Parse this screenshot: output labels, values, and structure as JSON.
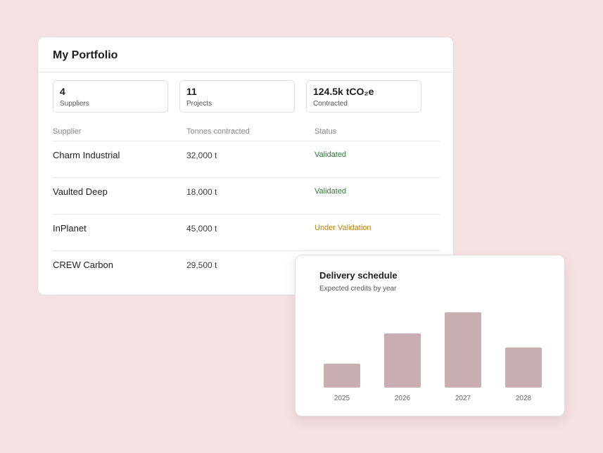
{
  "portfolio": {
    "title": "My Portfolio",
    "stats": [
      {
        "value": "4",
        "label": "Suppliers"
      },
      {
        "value": "11",
        "label": "Projects"
      },
      {
        "value": "124.5k tCO₂e",
        "label": "Contracted"
      }
    ],
    "columns": {
      "supplier": "Supplier",
      "tonnes": "Tonnes contracted",
      "status": "Status"
    },
    "rows": [
      {
        "supplier": "Charm Industrial",
        "tonnes": "32,000 t",
        "status": "Validated"
      },
      {
        "supplier": "Vaulted Deep",
        "tonnes": "18,000 t",
        "status": "Validated"
      },
      {
        "supplier": "InPlanet",
        "tonnes": "45,000 t",
        "status": "Under Validation"
      },
      {
        "supplier": "CREW Carbon",
        "tonnes": "29,500 t",
        "status": ""
      }
    ]
  },
  "delivery": {
    "title": "Delivery schedule",
    "subtitle": "Expected credits by year"
  },
  "colors": {
    "background": "#f5e1e3",
    "bar": "#c9afb2",
    "validated": "#2e7d32",
    "under_validation": "#c47f0a"
  },
  "chart_data": {
    "type": "bar",
    "title": "Delivery schedule",
    "subtitle": "Expected credits by year",
    "categories": [
      "2025",
      "2026",
      "2027",
      "2028"
    ],
    "values": [
      34,
      77,
      107,
      57
    ],
    "ylim": [
      0,
      110
    ],
    "xlabel": "",
    "ylabel": "",
    "grid": false
  }
}
